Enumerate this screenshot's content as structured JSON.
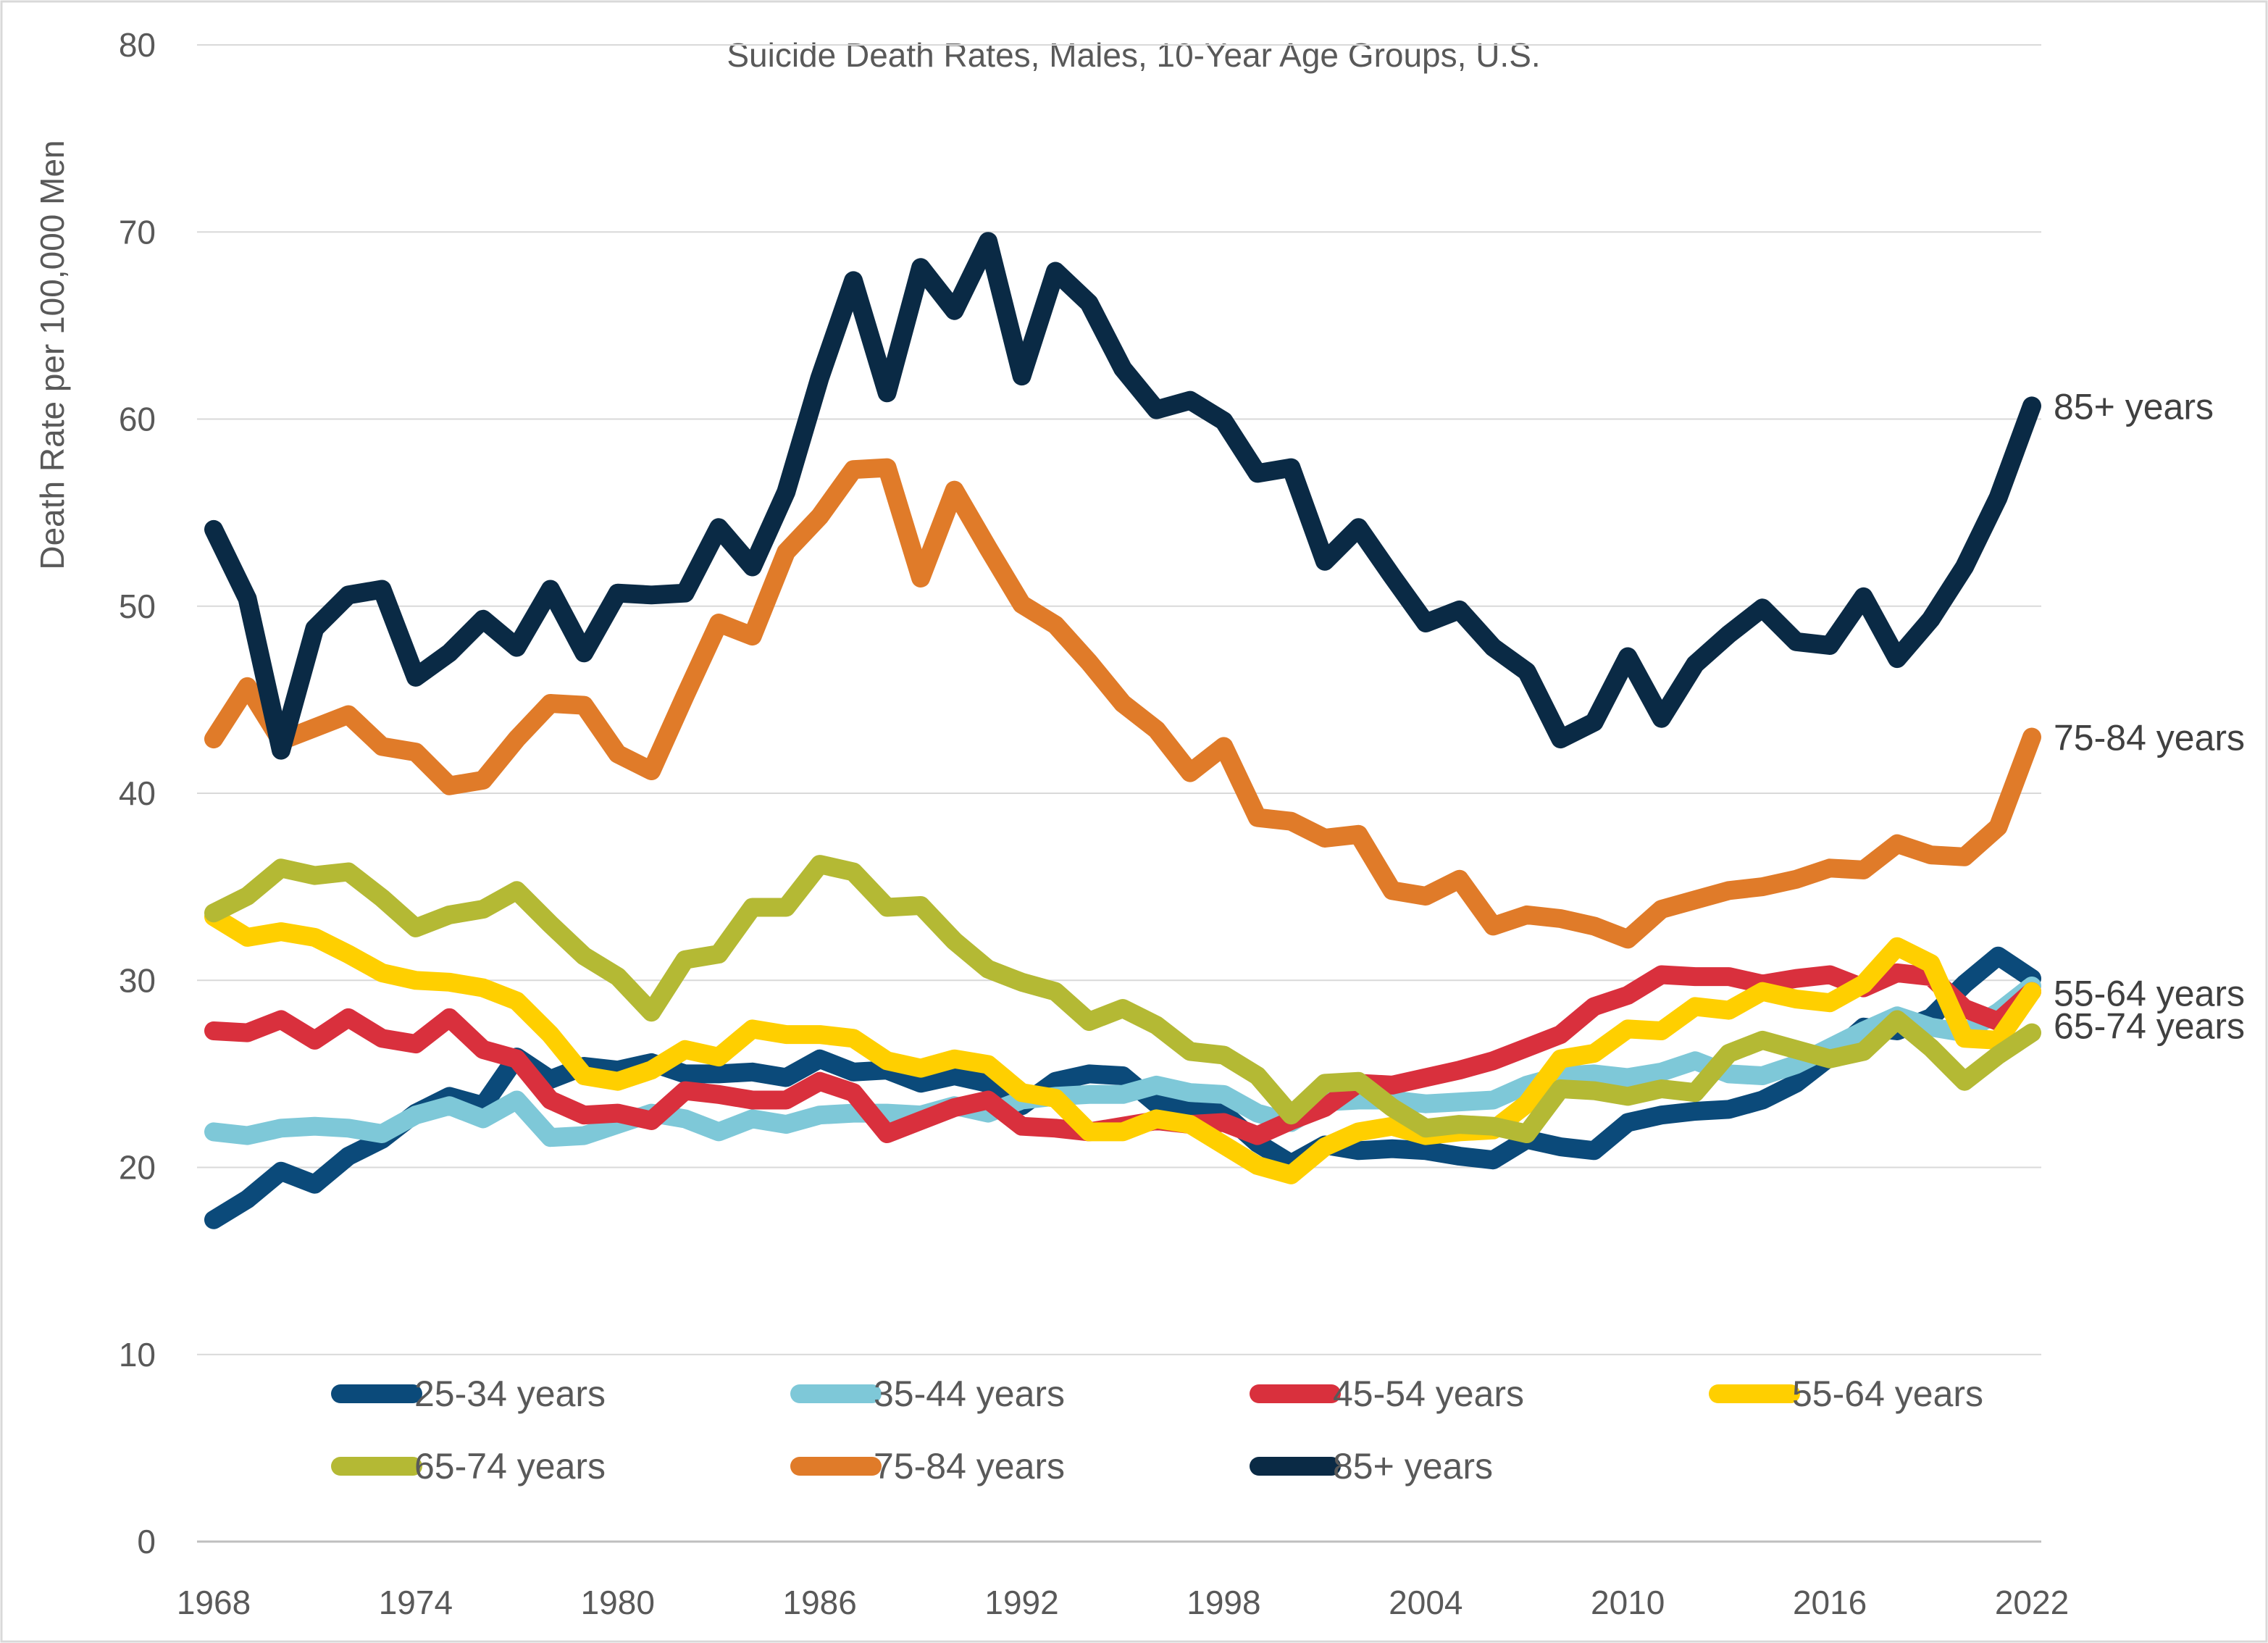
{
  "chart_data": {
    "type": "line",
    "title": "Suicide Death Rates, Males, 10-Year Age Groups, U.S.",
    "ylabel": "Death Rate per 100,000 Men",
    "xlabel": "",
    "xlim": [
      1968,
      2022
    ],
    "ylim": [
      0,
      80
    ],
    "y_ticks": [
      0,
      10,
      20,
      30,
      40,
      50,
      60,
      70,
      80
    ],
    "x_ticks": [
      1968,
      1974,
      1980,
      1986,
      1992,
      1998,
      2004,
      2010,
      2016,
      2022
    ],
    "grid": "horizontal",
    "legend_position": "bottom",
    "series": [
      {
        "name": "25-34 years",
        "color": "#0b4a7a",
        "start_year": 1968,
        "values": [
          17.2,
          18.3,
          19.8,
          19.1,
          20.6,
          21.5,
          22.9,
          23.8,
          23.3,
          25.9,
          24.7,
          25.4,
          25.2,
          25.6,
          25.0,
          25.0,
          25.1,
          24.8,
          25.8,
          25.1,
          25.2,
          24.5,
          24.9,
          24.5,
          23.3,
          24.6,
          25.0,
          24.9,
          23.4,
          23.3,
          22.9,
          21.3,
          20.2,
          21.2,
          20.9,
          21.0,
          20.9,
          20.6,
          20.4,
          21.5,
          21.1,
          20.9,
          22.4,
          22.8,
          23.0,
          23.1,
          23.6,
          24.5,
          25.9,
          27.5,
          27.3,
          28.0,
          29.8,
          31.3,
          30.1
        ]
      },
      {
        "name": "35-44 years",
        "color": "#7ec8d8",
        "start_year": 1968,
        "values": [
          21.9,
          21.7,
          22.1,
          22.2,
          22.1,
          21.8,
          22.8,
          23.3,
          22.6,
          23.6,
          21.6,
          21.7,
          22.3,
          22.9,
          22.6,
          21.9,
          22.6,
          22.3,
          22.8,
          22.9,
          22.9,
          22.8,
          23.3,
          22.9,
          23.6,
          23.8,
          23.9,
          23.9,
          24.4,
          24.0,
          23.9,
          22.9,
          22.4,
          23.5,
          23.6,
          23.6,
          23.4,
          23.5,
          23.6,
          24.4,
          24.9,
          25.0,
          24.8,
          25.1,
          25.7,
          25.0,
          24.9,
          25.5,
          26.4,
          27.3,
          28.1,
          27.5,
          27.2,
          28.3,
          29.7
        ]
      },
      {
        "name": "45-54 years",
        "color": "#d9303d",
        "start_year": 1968,
        "values": [
          27.3,
          27.2,
          27.9,
          26.8,
          28.0,
          26.9,
          26.6,
          28.0,
          26.3,
          25.8,
          23.6,
          22.8,
          22.9,
          22.5,
          24.1,
          23.9,
          23.6,
          23.6,
          24.6,
          24.0,
          21.8,
          22.5,
          23.2,
          23.6,
          22.2,
          22.1,
          21.9,
          22.2,
          22.5,
          22.3,
          22.4,
          21.7,
          22.5,
          23.2,
          24.5,
          24.4,
          24.8,
          25.2,
          25.7,
          26.4,
          27.1,
          28.6,
          29.2,
          30.3,
          30.2,
          30.2,
          29.8,
          30.1,
          30.3,
          29.6,
          30.4,
          30.2,
          28.5,
          27.8,
          29.4
        ]
      },
      {
        "name": "55-64 years",
        "color": "#ffcf00",
        "start_year": 1968,
        "values": [
          33.4,
          32.3,
          32.6,
          32.3,
          31.4,
          30.4,
          30.0,
          29.9,
          29.6,
          28.9,
          27.1,
          24.9,
          24.6,
          25.2,
          26.3,
          25.9,
          27.4,
          27.1,
          27.1,
          26.9,
          25.7,
          25.3,
          25.8,
          25.5,
          24.0,
          23.7,
          21.9,
          21.9,
          22.6,
          22.3,
          21.2,
          20.1,
          19.6,
          21.1,
          21.9,
          22.2,
          21.7,
          21.9,
          22.0,
          23.4,
          25.8,
          26.1,
          27.4,
          27.3,
          28.6,
          28.4,
          29.4,
          29.0,
          28.8,
          29.8,
          31.8,
          30.9,
          26.9,
          26.8,
          29.4
        ]
      },
      {
        "name": "65-74 years",
        "color": "#b4b934",
        "start_year": 1968,
        "values": [
          33.6,
          34.5,
          36.0,
          35.6,
          35.8,
          34.4,
          32.8,
          33.5,
          33.8,
          34.8,
          33.0,
          31.3,
          30.2,
          28.3,
          31.1,
          31.4,
          33.9,
          33.9,
          36.2,
          35.8,
          33.9,
          34.0,
          32.1,
          30.6,
          29.9,
          29.4,
          27.8,
          28.5,
          27.6,
          26.2,
          26.0,
          24.9,
          22.8,
          24.5,
          24.6,
          23.2,
          22.1,
          22.3,
          22.2,
          21.8,
          24.2,
          24.1,
          23.8,
          24.2,
          24.0,
          26.1,
          26.8,
          26.3,
          25.8,
          26.2,
          27.9,
          26.4,
          24.6,
          26.0,
          27.2
        ]
      },
      {
        "name": "75-84 years",
        "color": "#e07b29",
        "start_year": 1968,
        "values": [
          42.9,
          45.7,
          42.8,
          43.5,
          44.2,
          42.5,
          42.2,
          40.4,
          40.7,
          42.9,
          44.8,
          44.7,
          42.1,
          41.2,
          45.2,
          49.1,
          48.4,
          52.9,
          54.8,
          57.3,
          57.4,
          51.5,
          56.2,
          53.1,
          50.1,
          49.0,
          47.0,
          44.8,
          43.4,
          41.1,
          42.5,
          38.7,
          38.5,
          37.6,
          37.8,
          34.8,
          34.5,
          35.4,
          32.9,
          33.5,
          33.3,
          32.9,
          32.2,
          33.8,
          34.3,
          34.8,
          35.0,
          35.4,
          36.0,
          35.9,
          37.3,
          36.7,
          36.6,
          38.2,
          43.0
        ]
      },
      {
        "name": "85+ years",
        "color": "#0a2a45",
        "start_year": 1968,
        "values": [
          54.1,
          50.4,
          42.3,
          48.8,
          50.6,
          50.9,
          46.2,
          47.5,
          49.3,
          47.8,
          50.9,
          47.5,
          50.7,
          50.6,
          50.7,
          54.2,
          52.1,
          56.1,
          62.2,
          67.4,
          61.4,
          68.1,
          65.8,
          69.5,
          62.3,
          67.9,
          66.2,
          62.7,
          60.5,
          61.0,
          59.9,
          57.1,
          57.4,
          52.4,
          54.2,
          51.6,
          49.1,
          49.8,
          47.8,
          46.5,
          42.9,
          43.8,
          47.3,
          44.0,
          46.9,
          48.5,
          49.9,
          48.1,
          47.9,
          50.5,
          47.2,
          49.3,
          52.1,
          55.8,
          60.7
        ]
      }
    ]
  }
}
